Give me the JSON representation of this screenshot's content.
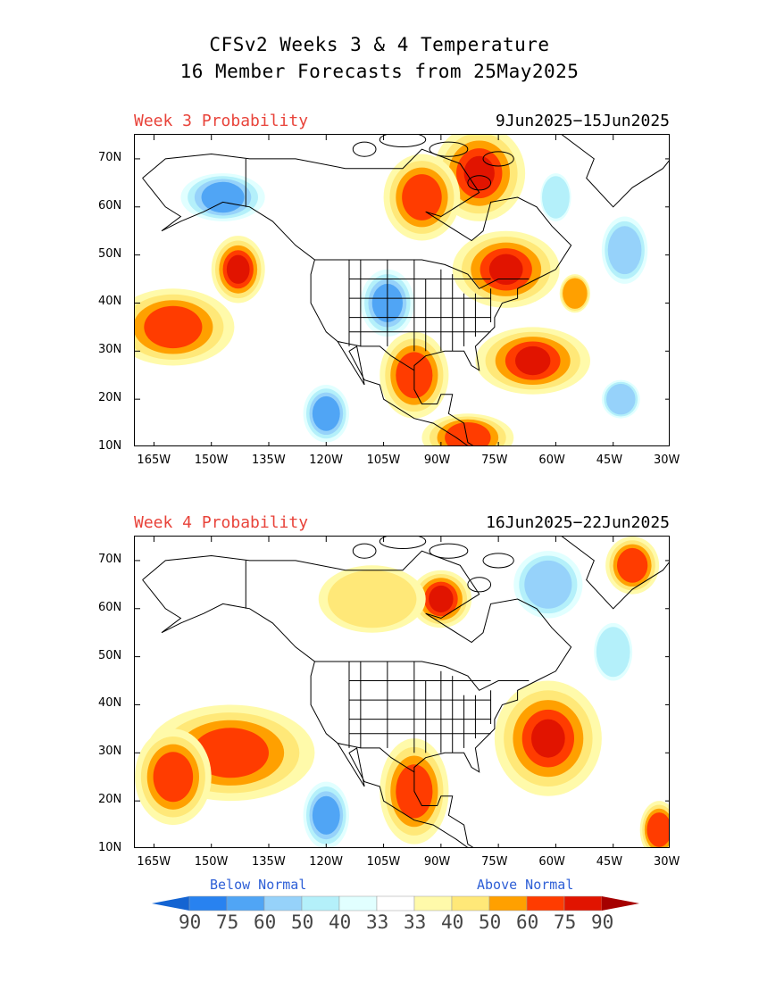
{
  "header": {
    "title_line1": "CFSv2 Weeks 3 & 4 Temperature",
    "title_line2": "16 Member Forecasts from 25May2025"
  },
  "panels": [
    {
      "label": "Week 3 Probability",
      "dates": "9Jun2025−15Jun2025"
    },
    {
      "label": "Week 4 Probability",
      "dates": "16Jun2025−22Jun2025"
    }
  ],
  "axes": {
    "lat_labels": [
      "70N",
      "60N",
      "50N",
      "40N",
      "30N",
      "20N",
      "10N"
    ],
    "lon_labels": [
      "165W",
      "150W",
      "135W",
      "120W",
      "105W",
      "90W",
      "75W",
      "60W",
      "45W",
      "30W"
    ],
    "lat_range": [
      10,
      75
    ],
    "lon_range": [
      -170,
      -30
    ]
  },
  "legend": {
    "below_label": "Below Normal",
    "above_label": "Above Normal",
    "values": [
      "90",
      "75",
      "60",
      "50",
      "40",
      "33",
      "33",
      "40",
      "50",
      "60",
      "75",
      "90"
    ],
    "colors": [
      "#1464d2",
      "#2882f0",
      "#50a5f5",
      "#96d2fa",
      "#b4f0fa",
      "#e1ffff",
      "#ffffff",
      "#fffaaa",
      "#ffe878",
      "#ffa000",
      "#ff3c00",
      "#e11400",
      "#a50000"
    ]
  },
  "map_data": {
    "week3": {
      "above": [
        {
          "lon": -80,
          "lat": 67,
          "rx": 10,
          "ry": 8,
          "level": 4
        },
        {
          "lon": -95,
          "lat": 62,
          "rx": 8,
          "ry": 7,
          "level": 3
        },
        {
          "lon": -73,
          "lat": 47,
          "rx": 12,
          "ry": 6,
          "level": 4
        },
        {
          "lon": -66,
          "lat": 28,
          "rx": 13,
          "ry": 5,
          "level": 4
        },
        {
          "lon": -160,
          "lat": 35,
          "rx": 14,
          "ry": 6,
          "level": 3
        },
        {
          "lon": -143,
          "lat": 47,
          "rx": 5,
          "ry": 5,
          "level": 4
        },
        {
          "lon": -97,
          "lat": 25,
          "rx": 7,
          "ry": 7,
          "level": 3
        },
        {
          "lon": -83,
          "lat": 12,
          "rx": 10,
          "ry": 3,
          "level": 3
        },
        {
          "lon": -55,
          "lat": 42,
          "rx": 2,
          "ry": 2,
          "level": 2
        }
      ],
      "below": [
        {
          "lon": -147,
          "lat": 62,
          "rx": 9,
          "ry": 3,
          "level": 3
        },
        {
          "lon": -104,
          "lat": 40,
          "rx": 5,
          "ry": 5,
          "level": 3
        },
        {
          "lon": -120,
          "lat": 17,
          "rx": 4,
          "ry": 4,
          "level": 3
        },
        {
          "lon": -42,
          "lat": 51,
          "rx": 4,
          "ry": 5,
          "level": 2
        },
        {
          "lon": -43,
          "lat": 20,
          "rx": 3,
          "ry": 2,
          "level": 2
        },
        {
          "lon": -60,
          "lat": 62,
          "rx": 2,
          "ry": 3,
          "level": 1
        }
      ]
    },
    "week4": {
      "above": [
        {
          "lon": -145,
          "lat": 30,
          "rx": 20,
          "ry": 8,
          "level": 3
        },
        {
          "lon": -160,
          "lat": 25,
          "rx": 8,
          "ry": 8,
          "level": 3
        },
        {
          "lon": -62,
          "lat": 33,
          "rx": 12,
          "ry": 10,
          "level": 4
        },
        {
          "lon": -90,
          "lat": 62,
          "rx": 6,
          "ry": 4,
          "level": 4
        },
        {
          "lon": -97,
          "lat": 22,
          "rx": 7,
          "ry": 9,
          "level": 3
        },
        {
          "lon": -40,
          "lat": 69,
          "rx": 5,
          "ry": 4,
          "level": 3
        },
        {
          "lon": -108,
          "lat": 62,
          "rx": 12,
          "ry": 5,
          "level": 1
        },
        {
          "lon": -33,
          "lat": 14,
          "rx": 3,
          "ry": 4,
          "level": 3
        }
      ],
      "below": [
        {
          "lon": -120,
          "lat": 17,
          "rx": 4,
          "ry": 5,
          "level": 3
        },
        {
          "lon": -62,
          "lat": 65,
          "rx": 7,
          "ry": 5,
          "level": 2
        },
        {
          "lon": -45,
          "lat": 51,
          "rx": 3,
          "ry": 4,
          "level": 1
        }
      ]
    }
  }
}
